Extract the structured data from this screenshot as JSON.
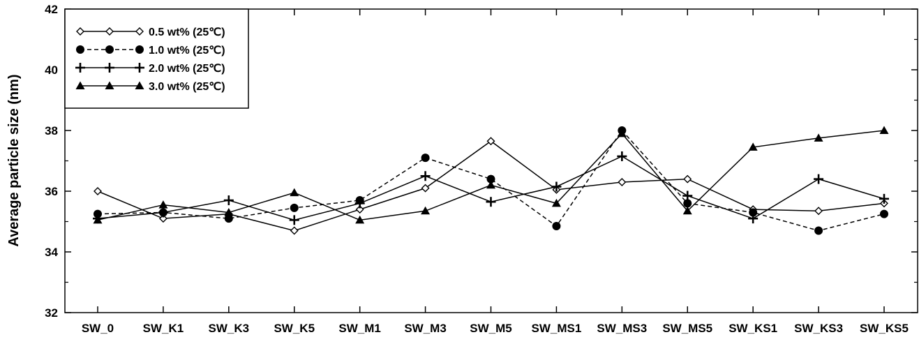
{
  "chart_data": {
    "type": "line",
    "title": "",
    "xlabel": "",
    "ylabel": "Average particle size (nm)",
    "ylim": [
      32,
      42
    ],
    "y_ticks": [
      "32",
      "34",
      "36",
      "38",
      "40",
      "42"
    ],
    "categories": [
      "SW_0",
      "SW_K1",
      "SW_K3",
      "SW_K5",
      "SW_M1",
      "SW_M3",
      "SW_M5",
      "SW_MS1",
      "SW_MS3",
      "SW_MS5",
      "SW_KS1",
      "SW_KS3",
      "SW_KS5"
    ],
    "grid": false,
    "legend_position": "top-left",
    "series": [
      {
        "name": "0.5 wt% (25℃)",
        "marker": "diamond-open",
        "line": "solid",
        "color": "#000000",
        "values": [
          36.0,
          35.1,
          35.25,
          34.7,
          35.4,
          36.1,
          37.65,
          36.05,
          36.3,
          36.4,
          35.4,
          35.35,
          35.6
        ]
      },
      {
        "name": "1.0 wt% (25℃)",
        "marker": "circle-filled",
        "line": "dashed",
        "color": "#000000",
        "values": [
          35.25,
          35.3,
          35.1,
          35.45,
          35.7,
          37.1,
          36.4,
          34.85,
          38.0,
          35.6,
          35.3,
          34.7,
          35.25
        ]
      },
      {
        "name": "2.0 wt% (25℃)",
        "marker": "plus",
        "line": "solid",
        "color": "#000000",
        "values": [
          35.1,
          35.3,
          35.7,
          35.05,
          35.6,
          36.5,
          35.65,
          36.15,
          37.15,
          35.85,
          35.1,
          36.4,
          35.75
        ]
      },
      {
        "name": "3.0 wt% (25℃)",
        "marker": "triangle-filled",
        "line": "solid",
        "color": "#000000",
        "values": [
          35.05,
          35.55,
          35.3,
          35.95,
          35.05,
          35.35,
          36.2,
          35.6,
          37.9,
          35.35,
          37.45,
          37.75,
          38.0
        ]
      }
    ]
  }
}
